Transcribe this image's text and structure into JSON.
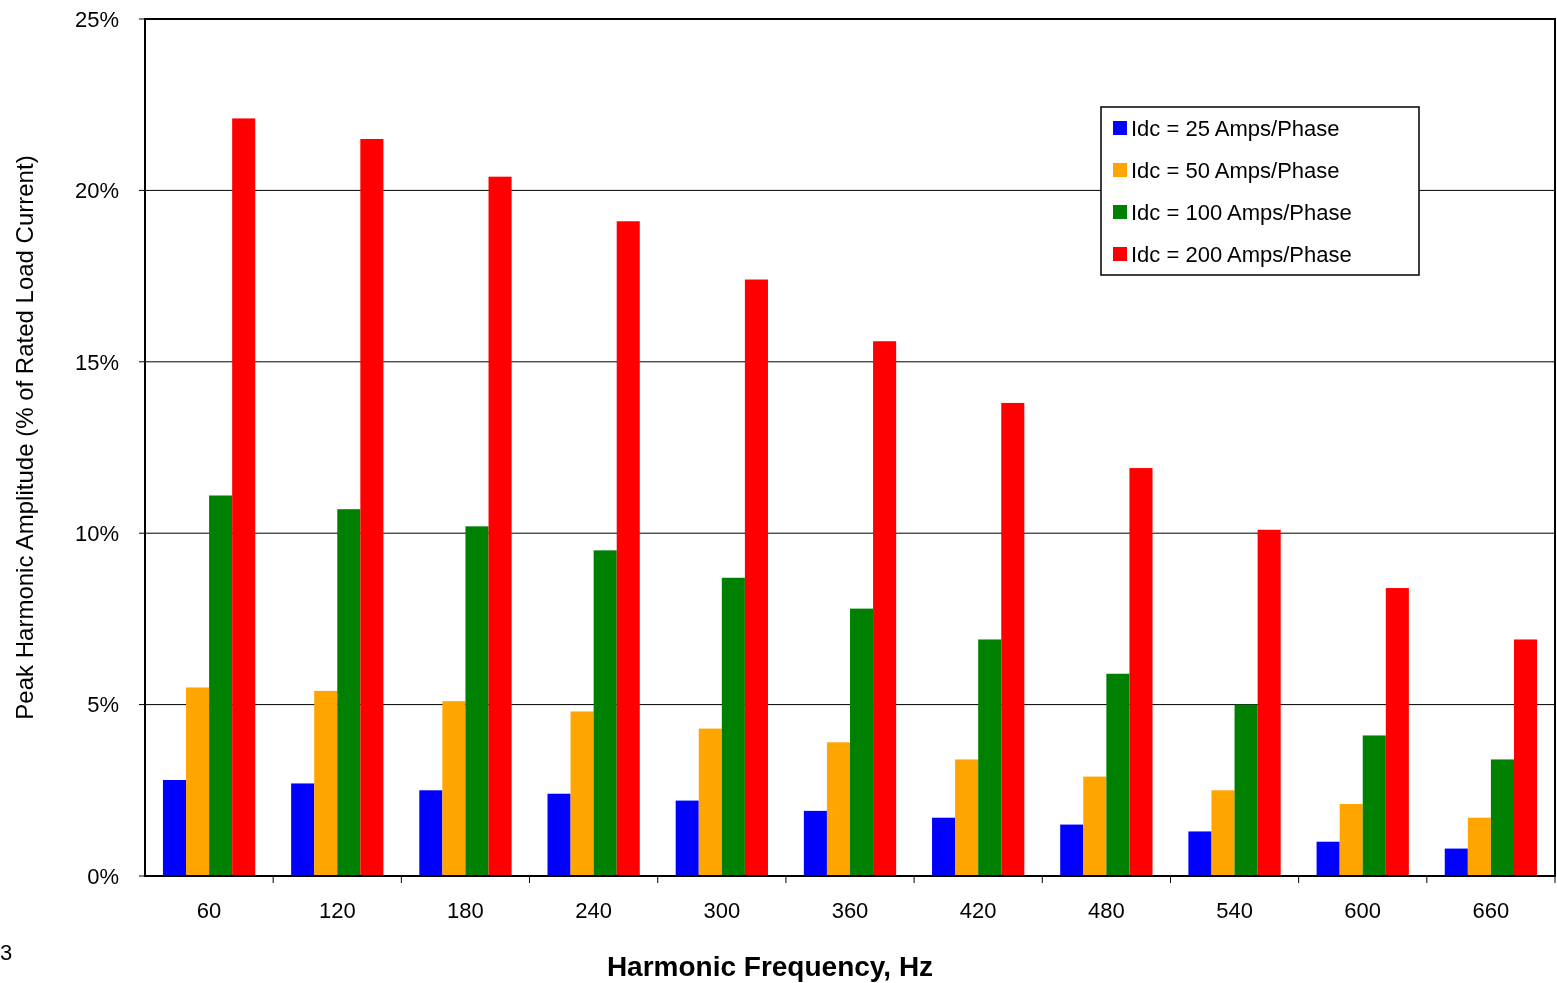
{
  "chart_data": {
    "type": "bar",
    "xlabel": "Harmonic Frequency, Hz",
    "ylabel": "Peak Harmonic Amplitude (% of Rated Load Current)",
    "categories": [
      "60",
      "120",
      "180",
      "240",
      "300",
      "360",
      "420",
      "480",
      "540",
      "600",
      "660"
    ],
    "series": [
      {
        "name": "Idc = 25 Amps/Phase",
        "color": "#0000ff",
        "values": [
          2.8,
          2.7,
          2.5,
          2.4,
          2.2,
          1.9,
          1.7,
          1.5,
          1.3,
          1.0,
          0.8
        ]
      },
      {
        "name": "Idc = 50 Amps/Phase",
        "color": "#ffa500",
        "values": [
          5.5,
          5.4,
          5.1,
          4.8,
          4.3,
          3.9,
          3.4,
          2.9,
          2.5,
          2.1,
          1.7
        ]
      },
      {
        "name": "Idc = 100 Amps/Phase",
        "color": "#008000",
        "values": [
          11.1,
          10.7,
          10.2,
          9.5,
          8.7,
          7.8,
          6.9,
          5.9,
          5.0,
          4.1,
          3.4
        ]
      },
      {
        "name": "Idc = 200 Amps/Phase",
        "color": "#ff0000",
        "values": [
          22.1,
          21.5,
          20.4,
          19.1,
          17.4,
          15.6,
          13.8,
          11.9,
          10.1,
          8.4,
          6.9
        ]
      }
    ],
    "ylim": [
      0,
      25
    ],
    "yticks": [
      {
        "value": 0,
        "label": "0%"
      },
      {
        "value": 5,
        "label": "5%"
      },
      {
        "value": 10,
        "label": "10%"
      },
      {
        "value": 15,
        "label": "15%"
      },
      {
        "value": 20,
        "label": "20%"
      },
      {
        "value": 25,
        "label": "25%"
      }
    ],
    "grid": "y",
    "legend": "top right",
    "annotations": [
      "3"
    ]
  }
}
